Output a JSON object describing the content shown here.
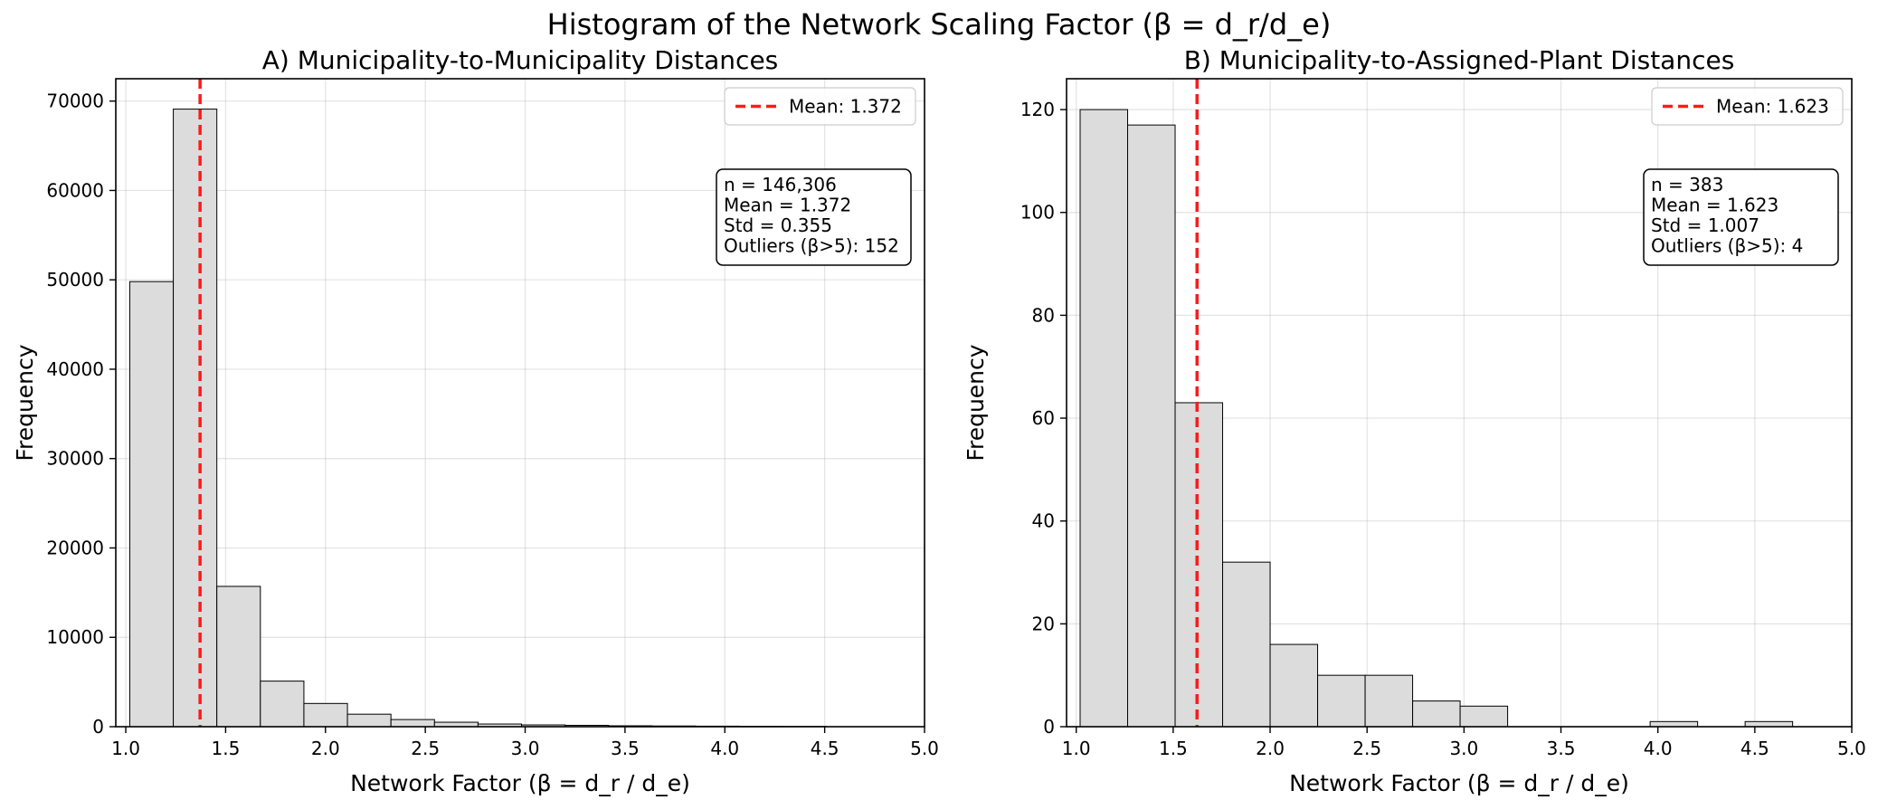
{
  "figure_title": "Histogram of the Network Scaling Factor (β = d_r/d_e)",
  "chart_data": [
    {
      "type": "bar",
      "title": "A) Municipality-to-Municipality Distances",
      "xlabel": "Network Factor (β = d_r / d_e)",
      "ylabel": "Frequency",
      "xlim": [
        0.95,
        5.0
      ],
      "ylim": [
        0,
        72500
      ],
      "xticks": [
        1.0,
        1.5,
        2.0,
        2.5,
        3.0,
        3.5,
        4.0,
        4.5,
        5.0
      ],
      "xtick_labels": [
        "1.0",
        "1.5",
        "2.0",
        "2.5",
        "3.0",
        "3.5",
        "4.0",
        "4.5",
        "5.0"
      ],
      "yticks": [
        0,
        10000,
        20000,
        30000,
        40000,
        50000,
        60000,
        70000
      ],
      "ytick_labels": [
        "0",
        "10000",
        "20000",
        "30000",
        "40000",
        "50000",
        "60000",
        "70000"
      ],
      "bin_edges": [
        1.02,
        1.238,
        1.456,
        1.674,
        1.892,
        2.11,
        2.328,
        2.546,
        2.764,
        2.982,
        3.2,
        3.418,
        3.636,
        3.854,
        4.072,
        4.29,
        4.508
      ],
      "values": [
        49800,
        69100,
        15700,
        5100,
        2600,
        1400,
        800,
        500,
        300,
        200,
        150,
        100,
        80,
        60,
        40,
        30
      ],
      "mean_line": {
        "value": 1.372,
        "label": "Mean: 1.372"
      },
      "legend_position": "upper right",
      "grid": true,
      "stats_box": [
        "n = 146,306",
        "Mean = 1.372",
        "Std = 0.355",
        "Outliers (β>5): 152"
      ]
    },
    {
      "type": "bar",
      "title": "B) Municipality-to-Assigned-Plant Distances",
      "xlabel": "Network Factor (β = d_r / d_e)",
      "ylabel": "Frequency",
      "xlim": [
        0.95,
        5.0
      ],
      "ylim": [
        0,
        126
      ],
      "xticks": [
        1.0,
        1.5,
        2.0,
        2.5,
        3.0,
        3.5,
        4.0,
        4.5,
        5.0
      ],
      "xtick_labels": [
        "1.0",
        "1.5",
        "2.0",
        "2.5",
        "3.0",
        "3.5",
        "4.0",
        "4.5",
        "5.0"
      ],
      "yticks": [
        0,
        20,
        40,
        60,
        80,
        100,
        120
      ],
      "ytick_labels": [
        "0",
        "20",
        "40",
        "60",
        "80",
        "100",
        "120"
      ],
      "bin_edges": [
        1.02,
        1.265,
        1.51,
        1.755,
        2.0,
        2.245,
        2.49,
        2.735,
        2.98,
        3.225,
        3.47,
        3.715,
        3.96,
        4.205,
        4.45,
        4.695
      ],
      "values": [
        120,
        117,
        63,
        32,
        16,
        10,
        10,
        5,
        4,
        0,
        0,
        0,
        1,
        0,
        1
      ],
      "mean_line": {
        "value": 1.623,
        "label": "Mean: 1.623"
      },
      "legend_position": "upper right",
      "grid": true,
      "stats_box": [
        "n = 383",
        "Mean = 1.623",
        "Std = 1.007",
        "Outliers (β>5): 4"
      ]
    }
  ]
}
